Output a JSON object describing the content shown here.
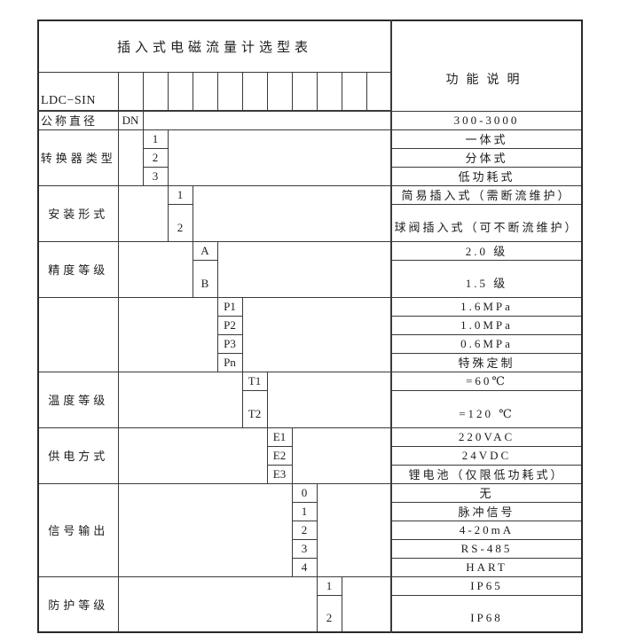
{
  "colors": {
    "ink": "#1d1d1d",
    "line": "#3a3a3a",
    "paper": "#ffffff"
  },
  "table": {
    "title": "插入式电磁流量计选型表",
    "model_prefix": "LDC−SIN",
    "function_header": "功能说明",
    "code_slots": 11,
    "groups": [
      {
        "label": "公称直径",
        "col": 1,
        "rows": [
          {
            "code": "DN",
            "desc": "300-3000",
            "tall": false
          }
        ]
      },
      {
        "label": "转换器类型",
        "col": 2,
        "rows": [
          {
            "code": "1",
            "desc": "一体式",
            "tall": false
          },
          {
            "code": "2",
            "desc": "分体式",
            "tall": false
          },
          {
            "code": "3",
            "desc": "低功耗式",
            "tall": false
          }
        ]
      },
      {
        "label": "安装形式",
        "col": 3,
        "rows": [
          {
            "code": "1",
            "desc": "简易插入式（需断流维护）",
            "tall": false
          },
          {
            "code": "2",
            "desc": "球阀插入式（可不断流维护）",
            "tall": true
          }
        ]
      },
      {
        "label": "精度等级",
        "col": 4,
        "rows": [
          {
            "code": "A",
            "desc": "2.0 级",
            "tall": false
          },
          {
            "code": "B",
            "desc": "1.5 级",
            "tall": true
          }
        ]
      },
      {
        "label": "",
        "col": 5,
        "rows": [
          {
            "code": "P1",
            "desc": "1.6MPa",
            "tall": false
          },
          {
            "code": "P2",
            "desc": "1.0MPa",
            "tall": false
          },
          {
            "code": "P3",
            "desc": "0.6MPa",
            "tall": false
          },
          {
            "code": "Pn",
            "desc": "特殊定制",
            "tall": false
          }
        ]
      },
      {
        "label": "温度等级",
        "col": 6,
        "rows": [
          {
            "code": "T1",
            "desc": "=60℃",
            "tall": false
          },
          {
            "code": "T2",
            "desc": "=120 ℃",
            "tall": true
          }
        ]
      },
      {
        "label": "供电方式",
        "col": 7,
        "rows": [
          {
            "code": "E1",
            "desc": "220VAC",
            "tall": false
          },
          {
            "code": "E2",
            "desc": "24VDC",
            "tall": false
          },
          {
            "code": "E3",
            "desc": "锂电池（仅限低功耗式）",
            "tall": false
          }
        ]
      },
      {
        "label": "信号输出",
        "col": 8,
        "rows": [
          {
            "code": "0",
            "desc": "无",
            "tall": false
          },
          {
            "code": "1",
            "desc": "脉冲信号",
            "tall": false
          },
          {
            "code": "2",
            "desc": "4-20mA",
            "tall": false
          },
          {
            "code": "3",
            "desc": "RS-485",
            "tall": false
          },
          {
            "code": "4",
            "desc": "HART",
            "tall": false
          }
        ]
      },
      {
        "label": "防护等级",
        "col": 9,
        "rows": [
          {
            "code": "1",
            "desc": "IP65",
            "tall": false
          },
          {
            "code": "2",
            "desc": "IP68",
            "tall": true
          }
        ]
      }
    ]
  }
}
